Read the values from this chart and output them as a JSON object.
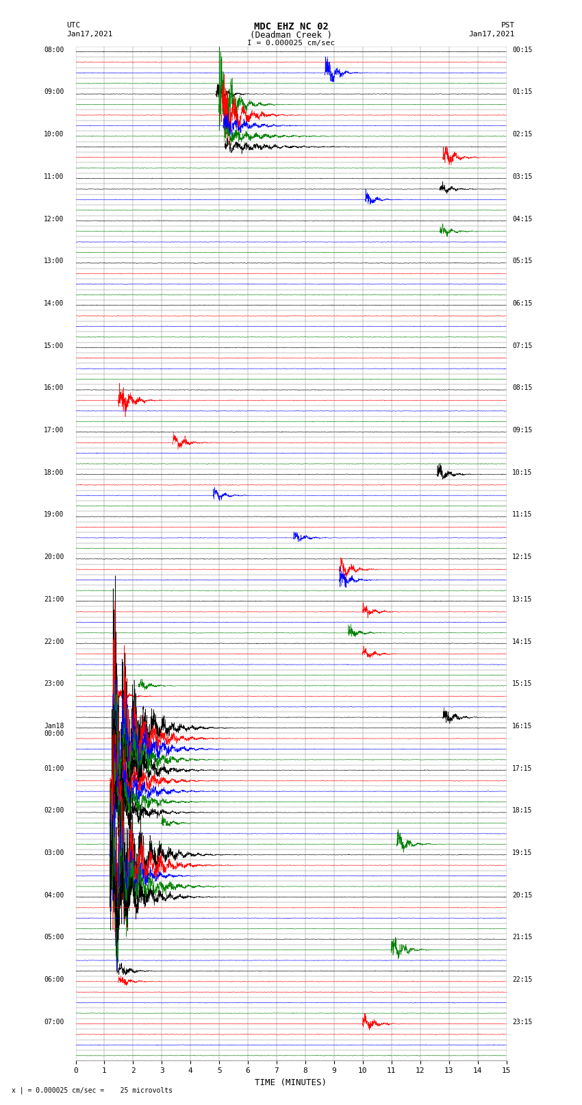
{
  "title_line1": "MDC EHZ NC 02",
  "title_line2": "(Deadman Creek )",
  "title_line3": "I = 0.000025 cm/sec",
  "left_label_top": "UTC",
  "left_label_date": "Jan17,2021",
  "right_label_top": "PST",
  "right_label_date": "Jan17,2021",
  "bottom_label": "TIME (MINUTES)",
  "footer_note": "x | = 0.000025 cm/sec =    25 microvolts",
  "x_min": 0,
  "x_max": 15,
  "x_ticks": [
    0,
    1,
    2,
    3,
    4,
    5,
    6,
    7,
    8,
    9,
    10,
    11,
    12,
    13,
    14,
    15
  ],
  "trace_colors": [
    "black",
    "red",
    "blue",
    "green"
  ],
  "left_hour_labels": [
    "08:00",
    "09:00",
    "10:00",
    "11:00",
    "12:00",
    "13:00",
    "14:00",
    "15:00",
    "16:00",
    "17:00",
    "18:00",
    "19:00",
    "20:00",
    "21:00",
    "22:00",
    "23:00",
    "Jan18\n00:00",
    "01:00",
    "02:00",
    "03:00",
    "04:00",
    "05:00",
    "06:00",
    "07:00"
  ],
  "right_hour_labels": [
    "00:15",
    "01:15",
    "02:15",
    "03:15",
    "04:15",
    "05:15",
    "06:15",
    "07:15",
    "08:15",
    "09:15",
    "10:15",
    "11:15",
    "12:15",
    "13:15",
    "14:15",
    "15:15",
    "16:15",
    "17:15",
    "18:15",
    "19:15",
    "20:15",
    "21:15",
    "22:15",
    "23:15"
  ],
  "n_rows": 96,
  "noise_amplitude": 0.06,
  "background_color": "white",
  "grid_color": "#888888",
  "grid_linewidth": 0.35,
  "trace_linewidth": 0.4,
  "big_events": [
    {
      "row": 5,
      "spike_t": 5.0,
      "spike_amp": 6.0,
      "color": "green",
      "decay": 2.5
    },
    {
      "row": 6,
      "spike_t": 5.1,
      "spike_amp": 5.0,
      "color": "red",
      "decay": 2.0
    },
    {
      "row": 7,
      "spike_t": 5.15,
      "spike_amp": 1.5,
      "color": "blue",
      "decay": 1.5
    },
    {
      "row": 8,
      "spike_t": 5.2,
      "spike_amp": 1.0,
      "color": "green",
      "decay": 1.0
    },
    {
      "row": 9,
      "spike_t": 5.2,
      "spike_amp": 0.8,
      "color": "black",
      "decay": 0.8
    },
    {
      "row": 64,
      "spike_t": 1.3,
      "spike_amp": 14.0,
      "color": "black",
      "decay": 1.5
    },
    {
      "row": 65,
      "spike_t": 1.3,
      "spike_amp": 12.0,
      "color": "red",
      "decay": 1.5
    },
    {
      "row": 66,
      "spike_t": 1.3,
      "spike_amp": 10.0,
      "color": "blue",
      "decay": 1.5
    },
    {
      "row": 67,
      "spike_t": 1.3,
      "spike_amp": 8.0,
      "color": "green",
      "decay": 1.5
    },
    {
      "row": 68,
      "spike_t": 1.3,
      "spike_amp": 7.0,
      "color": "black",
      "decay": 1.5
    },
    {
      "row": 69,
      "spike_t": 1.3,
      "spike_amp": 6.0,
      "color": "red",
      "decay": 1.5
    },
    {
      "row": 70,
      "spike_t": 1.3,
      "spike_amp": 5.0,
      "color": "blue",
      "decay": 1.5
    },
    {
      "row": 71,
      "spike_t": 1.3,
      "spike_amp": 4.0,
      "color": "green",
      "decay": 1.5
    },
    {
      "row": 72,
      "spike_t": 1.3,
      "spike_amp": 3.5,
      "color": "black",
      "decay": 1.5
    },
    {
      "row": 76,
      "spike_t": 1.2,
      "spike_amp": 16.0,
      "color": "black",
      "decay": 1.5
    },
    {
      "row": 77,
      "spike_t": 1.2,
      "spike_amp": 14.0,
      "color": "red",
      "decay": 1.5
    },
    {
      "row": 78,
      "spike_t": 1.2,
      "spike_amp": 12.0,
      "color": "blue",
      "decay": 2.0
    },
    {
      "row": 79,
      "spike_t": 1.2,
      "spike_amp": 10.0,
      "color": "green",
      "decay": 1.5
    },
    {
      "row": 80,
      "spike_t": 1.2,
      "spike_amp": 8.0,
      "color": "black",
      "decay": 1.5
    }
  ],
  "small_events": [
    {
      "row": 2,
      "spike_t": 8.7,
      "spike_amp": 1.8,
      "color": "blue"
    },
    {
      "row": 4,
      "spike_t": 4.9,
      "spike_amp": 1.2,
      "color": "black"
    },
    {
      "row": 10,
      "spike_t": 12.8,
      "spike_amp": 1.5,
      "color": "red"
    },
    {
      "row": 13,
      "spike_t": 12.7,
      "spike_amp": 0.8,
      "color": "black"
    },
    {
      "row": 14,
      "spike_t": 10.1,
      "spike_amp": 0.8,
      "color": "blue"
    },
    {
      "row": 17,
      "spike_t": 12.7,
      "spike_amp": 0.8,
      "color": "green"
    },
    {
      "row": 33,
      "spike_t": 1.5,
      "spike_amp": 2.5,
      "color": "red"
    },
    {
      "row": 37,
      "spike_t": 3.4,
      "spike_amp": 1.2,
      "color": "red"
    },
    {
      "row": 40,
      "spike_t": 12.6,
      "spike_amp": 1.2,
      "color": "black"
    },
    {
      "row": 42,
      "spike_t": 4.8,
      "spike_amp": 0.8,
      "color": "blue"
    },
    {
      "row": 46,
      "spike_t": 7.6,
      "spike_amp": 0.8,
      "color": "blue"
    },
    {
      "row": 49,
      "spike_t": 9.2,
      "spike_amp": 1.5,
      "color": "red"
    },
    {
      "row": 50,
      "spike_t": 9.2,
      "spike_amp": 1.2,
      "color": "blue"
    },
    {
      "row": 53,
      "spike_t": 10.0,
      "spike_amp": 0.8,
      "color": "red"
    },
    {
      "row": 55,
      "spike_t": 9.5,
      "spike_amp": 0.8,
      "color": "green"
    },
    {
      "row": 57,
      "spike_t": 10.0,
      "spike_amp": 0.8,
      "color": "red"
    },
    {
      "row": 60,
      "spike_t": 2.2,
      "spike_amp": 0.8,
      "color": "green"
    },
    {
      "row": 61,
      "spike_t": 1.5,
      "spike_amp": 0.8,
      "color": "red"
    },
    {
      "row": 63,
      "spike_t": 12.8,
      "spike_amp": 1.2,
      "color": "black"
    },
    {
      "row": 73,
      "spike_t": 3.0,
      "spike_amp": 0.8,
      "color": "green"
    },
    {
      "row": 75,
      "spike_t": 11.2,
      "spike_amp": 1.5,
      "color": "green"
    },
    {
      "row": 85,
      "spike_t": 11.0,
      "spike_amp": 2.0,
      "color": "green"
    },
    {
      "row": 87,
      "spike_t": 1.5,
      "spike_amp": 1.0,
      "color": "black"
    },
    {
      "row": 88,
      "spike_t": 1.5,
      "spike_amp": 0.8,
      "color": "red"
    },
    {
      "row": 92,
      "spike_t": 10.0,
      "spike_amp": 1.2,
      "color": "red"
    }
  ]
}
